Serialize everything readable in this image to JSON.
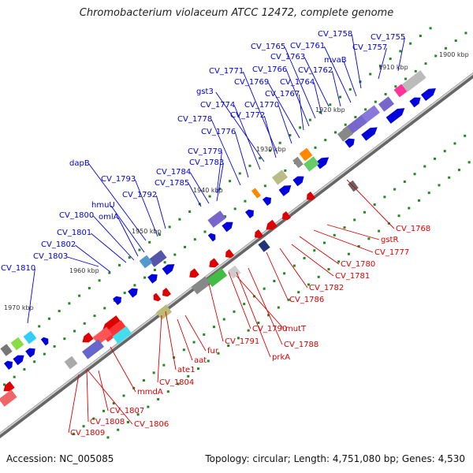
{
  "title": "Chromobacterium violaceum ATCC 12472, complete genome",
  "footer": {
    "accession": "Accession: NC_005085",
    "topology": "Topology: circular; Length: 4,751,080 bp; Genes: 4,530"
  },
  "ticks": [
    "1900 kbp",
    "1910 kbp",
    "1920 kbp",
    "1930 kbp",
    "1940 kbp",
    "1950 kbp",
    "1960 kbp",
    "1970 kbp"
  ],
  "forward_labels": [
    "CV_1755",
    "CV_1757",
    "CV_1758",
    "mvaB",
    "CV_1761",
    "CV_1762",
    "CV_1763",
    "CV_1764",
    "CV_1765",
    "CV_1766",
    "CV_1767",
    "CV_1769",
    "CV_1770",
    "CV_1771",
    "CV_1772",
    "gst3",
    "CV_1774",
    "CV_1776",
    "CV_1778",
    "CV_1779",
    "CV_1783",
    "CV_1784",
    "CV_1785",
    "CV_1792",
    "CV_1793",
    "dapB",
    "hmuU",
    "omlA",
    "CV_1800",
    "CV_1801",
    "CV_1802",
    "CV_1803",
    "CV_1810"
  ],
  "reverse_labels": [
    "CV_1768",
    "gstR",
    "CV_1777",
    "CV_1780",
    "CV_1781",
    "CV_1782",
    "CV_1786",
    "mutT",
    "CV_1788",
    "CV_1790",
    "CV_1791",
    "prkA",
    "fur",
    "aat",
    "ate1",
    "CV_1804",
    "mmdA",
    "CV_1806",
    "CV_1807",
    "CV_1808",
    "CV_1809"
  ],
  "colors": {
    "forward": "#0000dd",
    "reverse": "#dd0000",
    "tick": "#228822",
    "backbone": "#7a7a7a"
  }
}
